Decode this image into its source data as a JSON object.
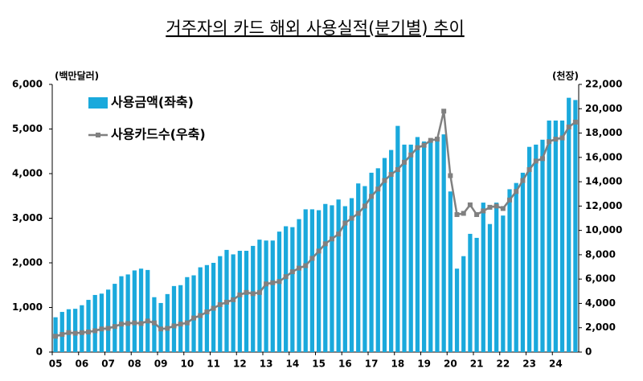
{
  "chart_data": {
    "type": "bar",
    "title": "거주자의 카드 해외 사용실적(분기별) 추이",
    "y_label": "(백만달러)",
    "y2_label": "(천장)",
    "categories": [
      "05",
      null,
      null,
      null,
      "06",
      null,
      null,
      null,
      "07",
      null,
      null,
      null,
      "08",
      null,
      null,
      null,
      "09",
      null,
      null,
      null,
      "10",
      null,
      null,
      null,
      "11",
      null,
      null,
      null,
      "12",
      null,
      null,
      null,
      "13",
      null,
      null,
      null,
      "14",
      null,
      null,
      null,
      "15",
      null,
      null,
      null,
      "16",
      null,
      null,
      null,
      "17",
      null,
      null,
      null,
      "18",
      null,
      null,
      null,
      "19",
      null,
      null,
      null,
      "20",
      null,
      null,
      null,
      "21",
      null,
      null,
      null,
      "22",
      null,
      null,
      null,
      "23",
      null,
      null,
      null,
      "24",
      null,
      null,
      null
    ],
    "series": [
      {
        "name": "사용금액(좌축)",
        "type": "bar",
        "color": "#1aa9dc",
        "values": [
          780,
          900,
          960,
          970,
          1050,
          1170,
          1280,
          1310,
          1400,
          1530,
          1700,
          1740,
          1830,
          1870,
          1840,
          1230,
          1100,
          1300,
          1480,
          1500,
          1680,
          1720,
          1900,
          1950,
          2000,
          2150,
          2290,
          2190,
          2270,
          2270,
          2380,
          2520,
          2500,
          2500,
          2700,
          2820,
          2800,
          2980,
          3200,
          3200,
          3180,
          3320,
          3290,
          3420,
          3270,
          3450,
          3780,
          3720,
          4020,
          4120,
          4350,
          4530,
          5070,
          4650,
          4650,
          4820,
          4720,
          4780,
          4820,
          4880,
          3600,
          1870,
          2150,
          2650,
          2560,
          3350,
          2870,
          3350,
          3060,
          3650,
          3790,
          4020,
          4600,
          4650,
          4760,
          5190,
          5190,
          5190,
          5700,
          5650
        ]
      },
      {
        "name": "사용카드수(우축)",
        "type": "line",
        "axis": "y2",
        "color": "#808080",
        "values": [
          1300,
          1450,
          1600,
          1550,
          1600,
          1650,
          1750,
          1900,
          1950,
          2100,
          2300,
          2350,
          2400,
          2350,
          2550,
          2400,
          1900,
          1950,
          2150,
          2300,
          2400,
          2800,
          3000,
          3300,
          3600,
          3900,
          4100,
          4300,
          4700,
          4900,
          4800,
          4900,
          5600,
          5700,
          5800,
          6200,
          6600,
          6900,
          7100,
          7700,
          8300,
          8900,
          9300,
          9700,
          10600,
          11000,
          11400,
          12000,
          12800,
          13400,
          14100,
          14600,
          15000,
          15600,
          16200,
          16800,
          17000,
          17400,
          17500,
          19800,
          14500,
          11300,
          11400,
          12100,
          11300,
          11600,
          11900,
          12000,
          11800,
          12500,
          13200,
          14100,
          15000,
          15700,
          15900,
          17300,
          17500,
          17600,
          18500,
          18900
        ]
      }
    ],
    "ylim": [
      0,
      6000
    ],
    "yticks": [
      0,
      {
        "value": 1000,
        "label": "1,000"
      },
      {
        "value": 2000,
        "label": "2,000"
      },
      {
        "value": 3000,
        "label": "3,000"
      },
      {
        "value": 4000,
        "label": "4,000"
      },
      {
        "value": 5000,
        "label": "5,000"
      },
      {
        "value": 6000,
        "label": "6,000"
      }
    ],
    "y2lim": [
      0,
      22000
    ],
    "y2ticks": [
      0,
      {
        "value": 2000,
        "label": "2,000"
      },
      {
        "value": 4000,
        "label": "4,000"
      },
      {
        "value": 6000,
        "label": "6,000"
      },
      {
        "value": 8000,
        "label": "8,000"
      },
      {
        "value": 10000,
        "label": "10,000"
      },
      {
        "value": 12000,
        "label": "12,000"
      },
      {
        "value": 14000,
        "label": "14,000"
      },
      {
        "value": 16000,
        "label": "16,000"
      },
      {
        "value": 18000,
        "label": "18,000"
      },
      {
        "value": 20000,
        "label": "20,000"
      },
      {
        "value": 22000,
        "label": "22,000"
      }
    ],
    "legend": "upper left"
  }
}
